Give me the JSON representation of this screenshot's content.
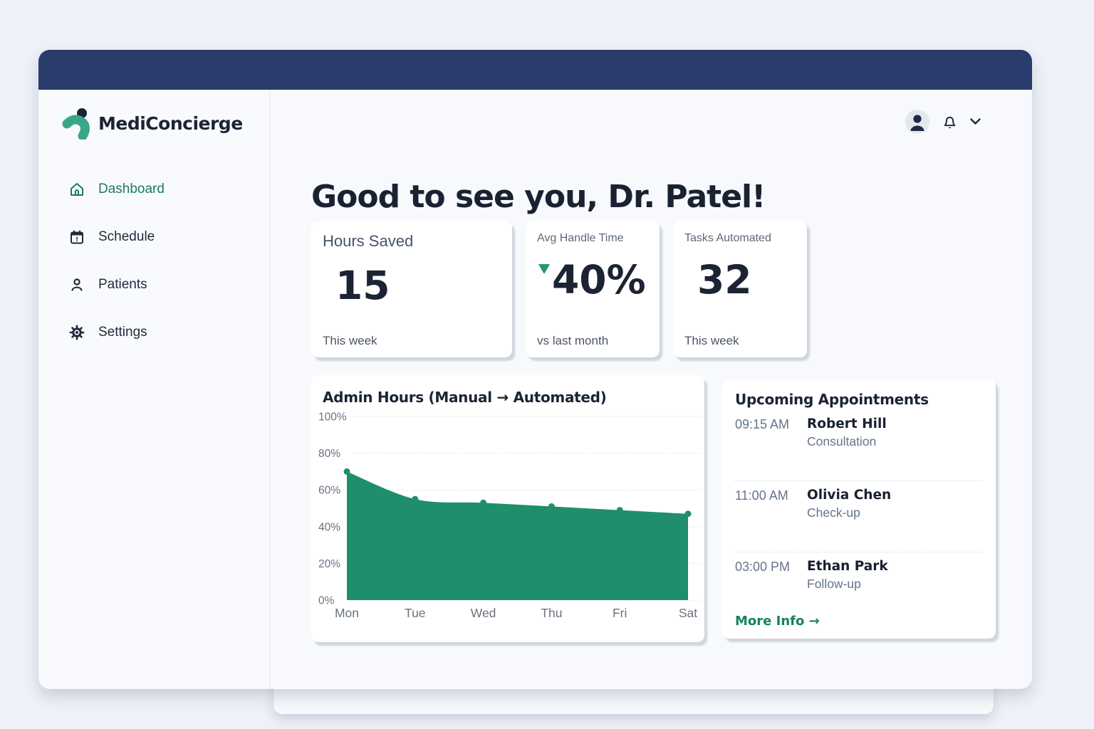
{
  "brand": {
    "name": "MediConcierge"
  },
  "topbar": {},
  "sidebar": {
    "items": [
      {
        "label": "Dashboard",
        "icon": "home-icon",
        "active": true
      },
      {
        "label": "Schedule",
        "icon": "calendar-icon",
        "active": false
      },
      {
        "label": "Patients",
        "icon": "patients-icon",
        "active": false
      },
      {
        "label": "Settings",
        "icon": "gear-icon",
        "active": false
      }
    ]
  },
  "header": {
    "greeting": "Good to see you, Dr. Patel!",
    "controls": [
      "user-avatar",
      "bell-icon",
      "chevron-down-icon"
    ]
  },
  "stats": [
    {
      "label": "Hours Saved",
      "value": "15",
      "footer": "This week"
    },
    {
      "label": "Avg Handle Time",
      "value": "40%",
      "trend": "down",
      "footer": "vs last month"
    },
    {
      "label": "Tasks Automated",
      "value": "32",
      "footer": "This week"
    }
  ],
  "chart_data": {
    "type": "area",
    "title": "Admin Hours (Manual → Automated)",
    "categories": [
      "Mon",
      "Tue",
      "Wed",
      "Thu",
      "Fri",
      "Sat"
    ],
    "values": [
      70,
      55,
      53,
      51,
      49,
      47
    ],
    "unit": "%",
    "ylim": [
      0,
      100
    ],
    "yticks": [
      0,
      20,
      40,
      60,
      80,
      100
    ],
    "grid": true,
    "legend": false,
    "fill_color": "#1f8e6d",
    "xlabel": "",
    "ylabel": ""
  },
  "appointments": {
    "title": "Upcoming Appointments",
    "items": [
      {
        "time": "09:15 AM",
        "name": "Robert Hill",
        "type": "Consultation"
      },
      {
        "time": "11:00 AM",
        "name": "Olivia Chen",
        "type": "Check-up"
      },
      {
        "time": "03:00 PM",
        "name": "Ethan Park",
        "type": "Follow-up"
      }
    ],
    "link": "More Info →"
  },
  "colors": {
    "navy_bar": "#2a3c6c",
    "dark_text": "#1b2435",
    "accent_green": "#1f8e6d",
    "link_green": "#17825f",
    "active_nav_green": "#1a7a5e",
    "muted_text": "#64748b",
    "card_bg": "#ffffff",
    "app_bg": "#f7f9fc"
  }
}
